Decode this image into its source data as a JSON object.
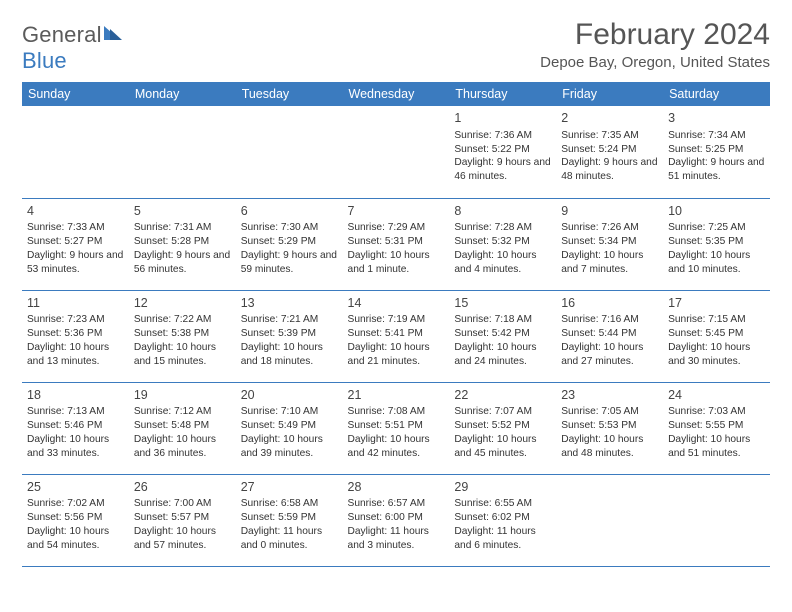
{
  "logo": {
    "text1": "General",
    "text2": "Blue",
    "accent": "#3b7bbf",
    "gray": "#5b5b5b"
  },
  "title": "February 2024",
  "location": "Depoe Bay, Oregon, United States",
  "dayHeaders": [
    "Sunday",
    "Monday",
    "Tuesday",
    "Wednesday",
    "Thursday",
    "Friday",
    "Saturday"
  ],
  "weeks": [
    [
      null,
      null,
      null,
      null,
      {
        "n": "1",
        "sr": "Sunrise: 7:36 AM",
        "ss": "Sunset: 5:22 PM",
        "dl": "Daylight: 9 hours and 46 minutes."
      },
      {
        "n": "2",
        "sr": "Sunrise: 7:35 AM",
        "ss": "Sunset: 5:24 PM",
        "dl": "Daylight: 9 hours and 48 minutes."
      },
      {
        "n": "3",
        "sr": "Sunrise: 7:34 AM",
        "ss": "Sunset: 5:25 PM",
        "dl": "Daylight: 9 hours and 51 minutes."
      }
    ],
    [
      {
        "n": "4",
        "sr": "Sunrise: 7:33 AM",
        "ss": "Sunset: 5:27 PM",
        "dl": "Daylight: 9 hours and 53 minutes."
      },
      {
        "n": "5",
        "sr": "Sunrise: 7:31 AM",
        "ss": "Sunset: 5:28 PM",
        "dl": "Daylight: 9 hours and 56 minutes."
      },
      {
        "n": "6",
        "sr": "Sunrise: 7:30 AM",
        "ss": "Sunset: 5:29 PM",
        "dl": "Daylight: 9 hours and 59 minutes."
      },
      {
        "n": "7",
        "sr": "Sunrise: 7:29 AM",
        "ss": "Sunset: 5:31 PM",
        "dl": "Daylight: 10 hours and 1 minute."
      },
      {
        "n": "8",
        "sr": "Sunrise: 7:28 AM",
        "ss": "Sunset: 5:32 PM",
        "dl": "Daylight: 10 hours and 4 minutes."
      },
      {
        "n": "9",
        "sr": "Sunrise: 7:26 AM",
        "ss": "Sunset: 5:34 PM",
        "dl": "Daylight: 10 hours and 7 minutes."
      },
      {
        "n": "10",
        "sr": "Sunrise: 7:25 AM",
        "ss": "Sunset: 5:35 PM",
        "dl": "Daylight: 10 hours and 10 minutes."
      }
    ],
    [
      {
        "n": "11",
        "sr": "Sunrise: 7:23 AM",
        "ss": "Sunset: 5:36 PM",
        "dl": "Daylight: 10 hours and 13 minutes."
      },
      {
        "n": "12",
        "sr": "Sunrise: 7:22 AM",
        "ss": "Sunset: 5:38 PM",
        "dl": "Daylight: 10 hours and 15 minutes."
      },
      {
        "n": "13",
        "sr": "Sunrise: 7:21 AM",
        "ss": "Sunset: 5:39 PM",
        "dl": "Daylight: 10 hours and 18 minutes."
      },
      {
        "n": "14",
        "sr": "Sunrise: 7:19 AM",
        "ss": "Sunset: 5:41 PM",
        "dl": "Daylight: 10 hours and 21 minutes."
      },
      {
        "n": "15",
        "sr": "Sunrise: 7:18 AM",
        "ss": "Sunset: 5:42 PM",
        "dl": "Daylight: 10 hours and 24 minutes."
      },
      {
        "n": "16",
        "sr": "Sunrise: 7:16 AM",
        "ss": "Sunset: 5:44 PM",
        "dl": "Daylight: 10 hours and 27 minutes."
      },
      {
        "n": "17",
        "sr": "Sunrise: 7:15 AM",
        "ss": "Sunset: 5:45 PM",
        "dl": "Daylight: 10 hours and 30 minutes."
      }
    ],
    [
      {
        "n": "18",
        "sr": "Sunrise: 7:13 AM",
        "ss": "Sunset: 5:46 PM",
        "dl": "Daylight: 10 hours and 33 minutes."
      },
      {
        "n": "19",
        "sr": "Sunrise: 7:12 AM",
        "ss": "Sunset: 5:48 PM",
        "dl": "Daylight: 10 hours and 36 minutes."
      },
      {
        "n": "20",
        "sr": "Sunrise: 7:10 AM",
        "ss": "Sunset: 5:49 PM",
        "dl": "Daylight: 10 hours and 39 minutes."
      },
      {
        "n": "21",
        "sr": "Sunrise: 7:08 AM",
        "ss": "Sunset: 5:51 PM",
        "dl": "Daylight: 10 hours and 42 minutes."
      },
      {
        "n": "22",
        "sr": "Sunrise: 7:07 AM",
        "ss": "Sunset: 5:52 PM",
        "dl": "Daylight: 10 hours and 45 minutes."
      },
      {
        "n": "23",
        "sr": "Sunrise: 7:05 AM",
        "ss": "Sunset: 5:53 PM",
        "dl": "Daylight: 10 hours and 48 minutes."
      },
      {
        "n": "24",
        "sr": "Sunrise: 7:03 AM",
        "ss": "Sunset: 5:55 PM",
        "dl": "Daylight: 10 hours and 51 minutes."
      }
    ],
    [
      {
        "n": "25",
        "sr": "Sunrise: 7:02 AM",
        "ss": "Sunset: 5:56 PM",
        "dl": "Daylight: 10 hours and 54 minutes."
      },
      {
        "n": "26",
        "sr": "Sunrise: 7:00 AM",
        "ss": "Sunset: 5:57 PM",
        "dl": "Daylight: 10 hours and 57 minutes."
      },
      {
        "n": "27",
        "sr": "Sunrise: 6:58 AM",
        "ss": "Sunset: 5:59 PM",
        "dl": "Daylight: 11 hours and 0 minutes."
      },
      {
        "n": "28",
        "sr": "Sunrise: 6:57 AM",
        "ss": "Sunset: 6:00 PM",
        "dl": "Daylight: 11 hours and 3 minutes."
      },
      {
        "n": "29",
        "sr": "Sunrise: 6:55 AM",
        "ss": "Sunset: 6:02 PM",
        "dl": "Daylight: 11 hours and 6 minutes."
      },
      null,
      null
    ]
  ],
  "colors": {
    "headerBg": "#3b7bbf",
    "headerFg": "#ffffff",
    "rowBorder": "#3b7bbf",
    "bodyText": "#333333",
    "titleText": "#555555"
  }
}
